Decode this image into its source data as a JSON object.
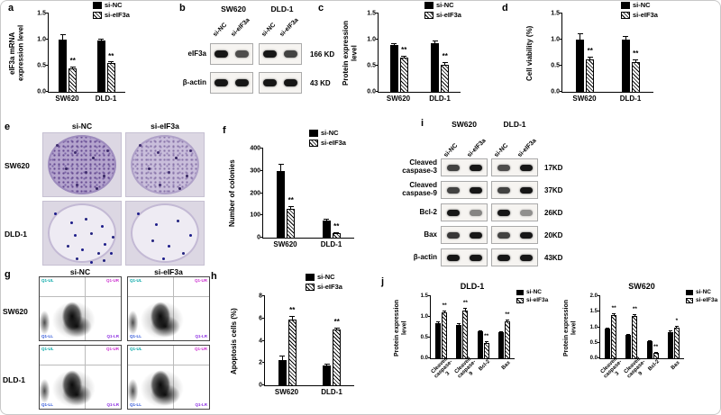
{
  "panels": {
    "a": {
      "letter": "a"
    },
    "b": {
      "letter": "b",
      "cell_lines": [
        "SW620",
        "DLD-1"
      ],
      "lanes": [
        "si-NC",
        "si-eIF3a",
        "si-NC",
        "si-eIF3a"
      ],
      "rows": [
        {
          "label": "eIF3a",
          "kd": "166 KD",
          "intensities": [
            1,
            0.75,
            1,
            0.8
          ]
        },
        {
          "label": "β-actin",
          "kd": "43 KD",
          "intensities": [
            1,
            1,
            1,
            1
          ]
        }
      ]
    },
    "c": {
      "letter": "c"
    },
    "d": {
      "letter": "d"
    },
    "e": {
      "letter": "e",
      "col_labels": [
        "si-NC",
        "si-eIF3a"
      ],
      "row_labels": [
        "SW620",
        "DLD-1"
      ]
    },
    "f": {
      "letter": "f"
    },
    "g": {
      "letter": "g",
      "col_labels": [
        "si-NC",
        "si-eIF3a"
      ],
      "row_labels": [
        "SW620",
        "DLD-1"
      ],
      "quadrants": [
        {
          "label": "Q1-UL",
          "color": "#00a6a6",
          "pos": "tl"
        },
        {
          "label": "Q1-UR",
          "color": "#cc2fcf",
          "pos": "tr"
        },
        {
          "label": "Q1-LL",
          "color": "#2d53d8",
          "pos": "bl"
        },
        {
          "label": "Q1-LR",
          "color": "#8a2be2",
          "pos": "br"
        }
      ]
    },
    "h": {
      "letter": "h"
    },
    "i": {
      "letter": "i",
      "cell_lines": [
        "SW620",
        "DLD-1"
      ],
      "lanes": [
        "si-NC",
        "si-eIF3a",
        "si-NC",
        "si-eIF3a"
      ],
      "rows": [
        {
          "label": "Cleaved\ncaspase-3",
          "kd": "17KD",
          "intensities": [
            0.8,
            1,
            0.75,
            1
          ]
        },
        {
          "label": "Cleaved\ncaspase-9",
          "kd": "37KD",
          "intensities": [
            0.8,
            1,
            0.8,
            1
          ]
        },
        {
          "label": "Bcl-2",
          "kd": "26KD",
          "intensities": [
            1,
            0.5,
            1,
            0.45
          ]
        },
        {
          "label": "Bax",
          "kd": "20KD",
          "intensities": [
            0.85,
            1,
            0.8,
            1
          ]
        },
        {
          "label": "β-actin",
          "kd": "43KD",
          "intensities": [
            1,
            1,
            1,
            1
          ]
        }
      ]
    },
    "j": {
      "letter": "j"
    }
  },
  "chart_data": [
    {
      "id": "a",
      "type": "bar",
      "ylabel": "eIF3a mRNA\nexpression level",
      "ylim": [
        0,
        1.5
      ],
      "yticks": [
        "0.0",
        "0.5",
        "1.0",
        "1.5"
      ],
      "categories": [
        "SW620",
        "DLD-1"
      ],
      "legend_position": "top-right",
      "series": [
        {
          "name": "si-NC",
          "style": "solid",
          "values": [
            1.0,
            0.98
          ],
          "errors": [
            0.1,
            0.03
          ],
          "sig": [
            "",
            ""
          ]
        },
        {
          "name": "si-eIF3a",
          "style": "hatched",
          "values": [
            0.45,
            0.55
          ],
          "errors": [
            0.04,
            0.03
          ],
          "sig": [
            "**",
            "**"
          ]
        }
      ]
    },
    {
      "id": "c",
      "type": "bar",
      "ylabel": "Protein expression level",
      "ylim": [
        0,
        1.5
      ],
      "yticks": [
        "0.0",
        "0.5",
        "1.0",
        "1.5"
      ],
      "categories": [
        "SW620",
        "DLD-1"
      ],
      "legend_position": "top-right",
      "series": [
        {
          "name": "si-NC",
          "style": "solid",
          "values": [
            0.9,
            0.93
          ],
          "errors": [
            0.03,
            0.05
          ],
          "sig": [
            "",
            ""
          ]
        },
        {
          "name": "si-eIF3a",
          "style": "hatched",
          "values": [
            0.65,
            0.52
          ],
          "errors": [
            0.04,
            0.05
          ],
          "sig": [
            "**",
            "**"
          ]
        }
      ]
    },
    {
      "id": "d",
      "type": "bar",
      "ylabel": "Cell viability (%)",
      "ylim": [
        0,
        1.5
      ],
      "yticks": [
        "0.0",
        "0.5",
        "1.0",
        "1.5"
      ],
      "categories": [
        "SW620",
        "DLD-1"
      ],
      "legend_position": "top-right",
      "series": [
        {
          "name": "si-NC",
          "style": "solid",
          "values": [
            1.0,
            1.0
          ],
          "errors": [
            0.12,
            0.07
          ],
          "sig": [
            "",
            ""
          ]
        },
        {
          "name": "si-eIF3a",
          "style": "hatched",
          "values": [
            0.62,
            0.57
          ],
          "errors": [
            0.06,
            0.05
          ],
          "sig": [
            "**",
            "**"
          ]
        }
      ]
    },
    {
      "id": "f",
      "type": "bar",
      "ylabel": "Number of colonies",
      "ylim": [
        0,
        400
      ],
      "yticks": [
        "0",
        "100",
        "200",
        "300",
        "400"
      ],
      "categories": [
        "SW620",
        "DLD-1"
      ],
      "legend_position": "top-right",
      "series": [
        {
          "name": "si-NC",
          "style": "solid",
          "values": [
            300,
            75
          ],
          "errors": [
            30,
            8
          ],
          "sig": [
            "",
            ""
          ]
        },
        {
          "name": "si-eIF3a",
          "style": "hatched",
          "values": [
            130,
            20
          ],
          "errors": [
            12,
            4
          ],
          "sig": [
            "**",
            "**"
          ]
        }
      ]
    },
    {
      "id": "h",
      "type": "bar",
      "ylabel": "Apoptosis cells (%)",
      "ylim": [
        0,
        8
      ],
      "yticks": [
        "0",
        "2",
        "4",
        "6",
        "8"
      ],
      "categories": [
        "SW620",
        "DLD-1"
      ],
      "legend_position": "top-right",
      "series": [
        {
          "name": "si-NC",
          "style": "solid",
          "values": [
            2.3,
            1.8
          ],
          "errors": [
            0.35,
            0.15
          ],
          "sig": [
            "",
            ""
          ]
        },
        {
          "name": "si-eIF3a",
          "style": "hatched",
          "values": [
            5.9,
            5.0
          ],
          "errors": [
            0.3,
            0.15
          ],
          "sig": [
            "**",
            "**"
          ]
        }
      ]
    },
    {
      "id": "j-dld1",
      "type": "bar",
      "title": "DLD-1",
      "ylabel": "Protein expression level",
      "ylim": [
        0,
        1.5
      ],
      "yticks": [
        "0.0",
        "0.5",
        "1.0",
        "1.5"
      ],
      "categories": [
        "Cleaved\ncaspase-3",
        "Cleaved\ncaspase-9",
        "Bcl-2",
        "Bax"
      ],
      "legend_position": "top-right",
      "series": [
        {
          "name": "si-NC",
          "style": "solid",
          "values": [
            0.85,
            0.8,
            0.65,
            0.62
          ],
          "errors": [
            0.04,
            0.04,
            0.03,
            0.03
          ],
          "sig": [
            "",
            "",
            "",
            ""
          ]
        },
        {
          "name": "si-eIF3a",
          "style": "hatched",
          "values": [
            1.1,
            1.15,
            0.38,
            0.9
          ],
          "errors": [
            0.05,
            0.06,
            0.03,
            0.04
          ],
          "sig": [
            "**",
            "**",
            "**",
            "**"
          ]
        }
      ]
    },
    {
      "id": "j-sw620",
      "type": "bar",
      "title": "SW620",
      "ylabel": "Protein expression level",
      "ylim": [
        0,
        2.0
      ],
      "yticks": [
        "0.0",
        "0.5",
        "1.0",
        "1.5",
        "2.0"
      ],
      "categories": [
        "Cleaved\ncaspase-3",
        "Cleaved\ncaspase-9",
        "Bcl-2",
        "Bax"
      ],
      "legend_position": "top-right",
      "series": [
        {
          "name": "si-NC",
          "style": "solid",
          "values": [
            0.95,
            0.75,
            0.55,
            0.85
          ],
          "errors": [
            0.05,
            0.04,
            0.04,
            0.05
          ],
          "sig": [
            "",
            "",
            "",
            ""
          ]
        },
        {
          "name": "si-eIF3a",
          "style": "hatched",
          "values": [
            1.4,
            1.35,
            0.18,
            1.0
          ],
          "errors": [
            0.06,
            0.06,
            0.03,
            0.05
          ],
          "sig": [
            "**",
            "**",
            "**",
            "*"
          ]
        }
      ]
    }
  ]
}
